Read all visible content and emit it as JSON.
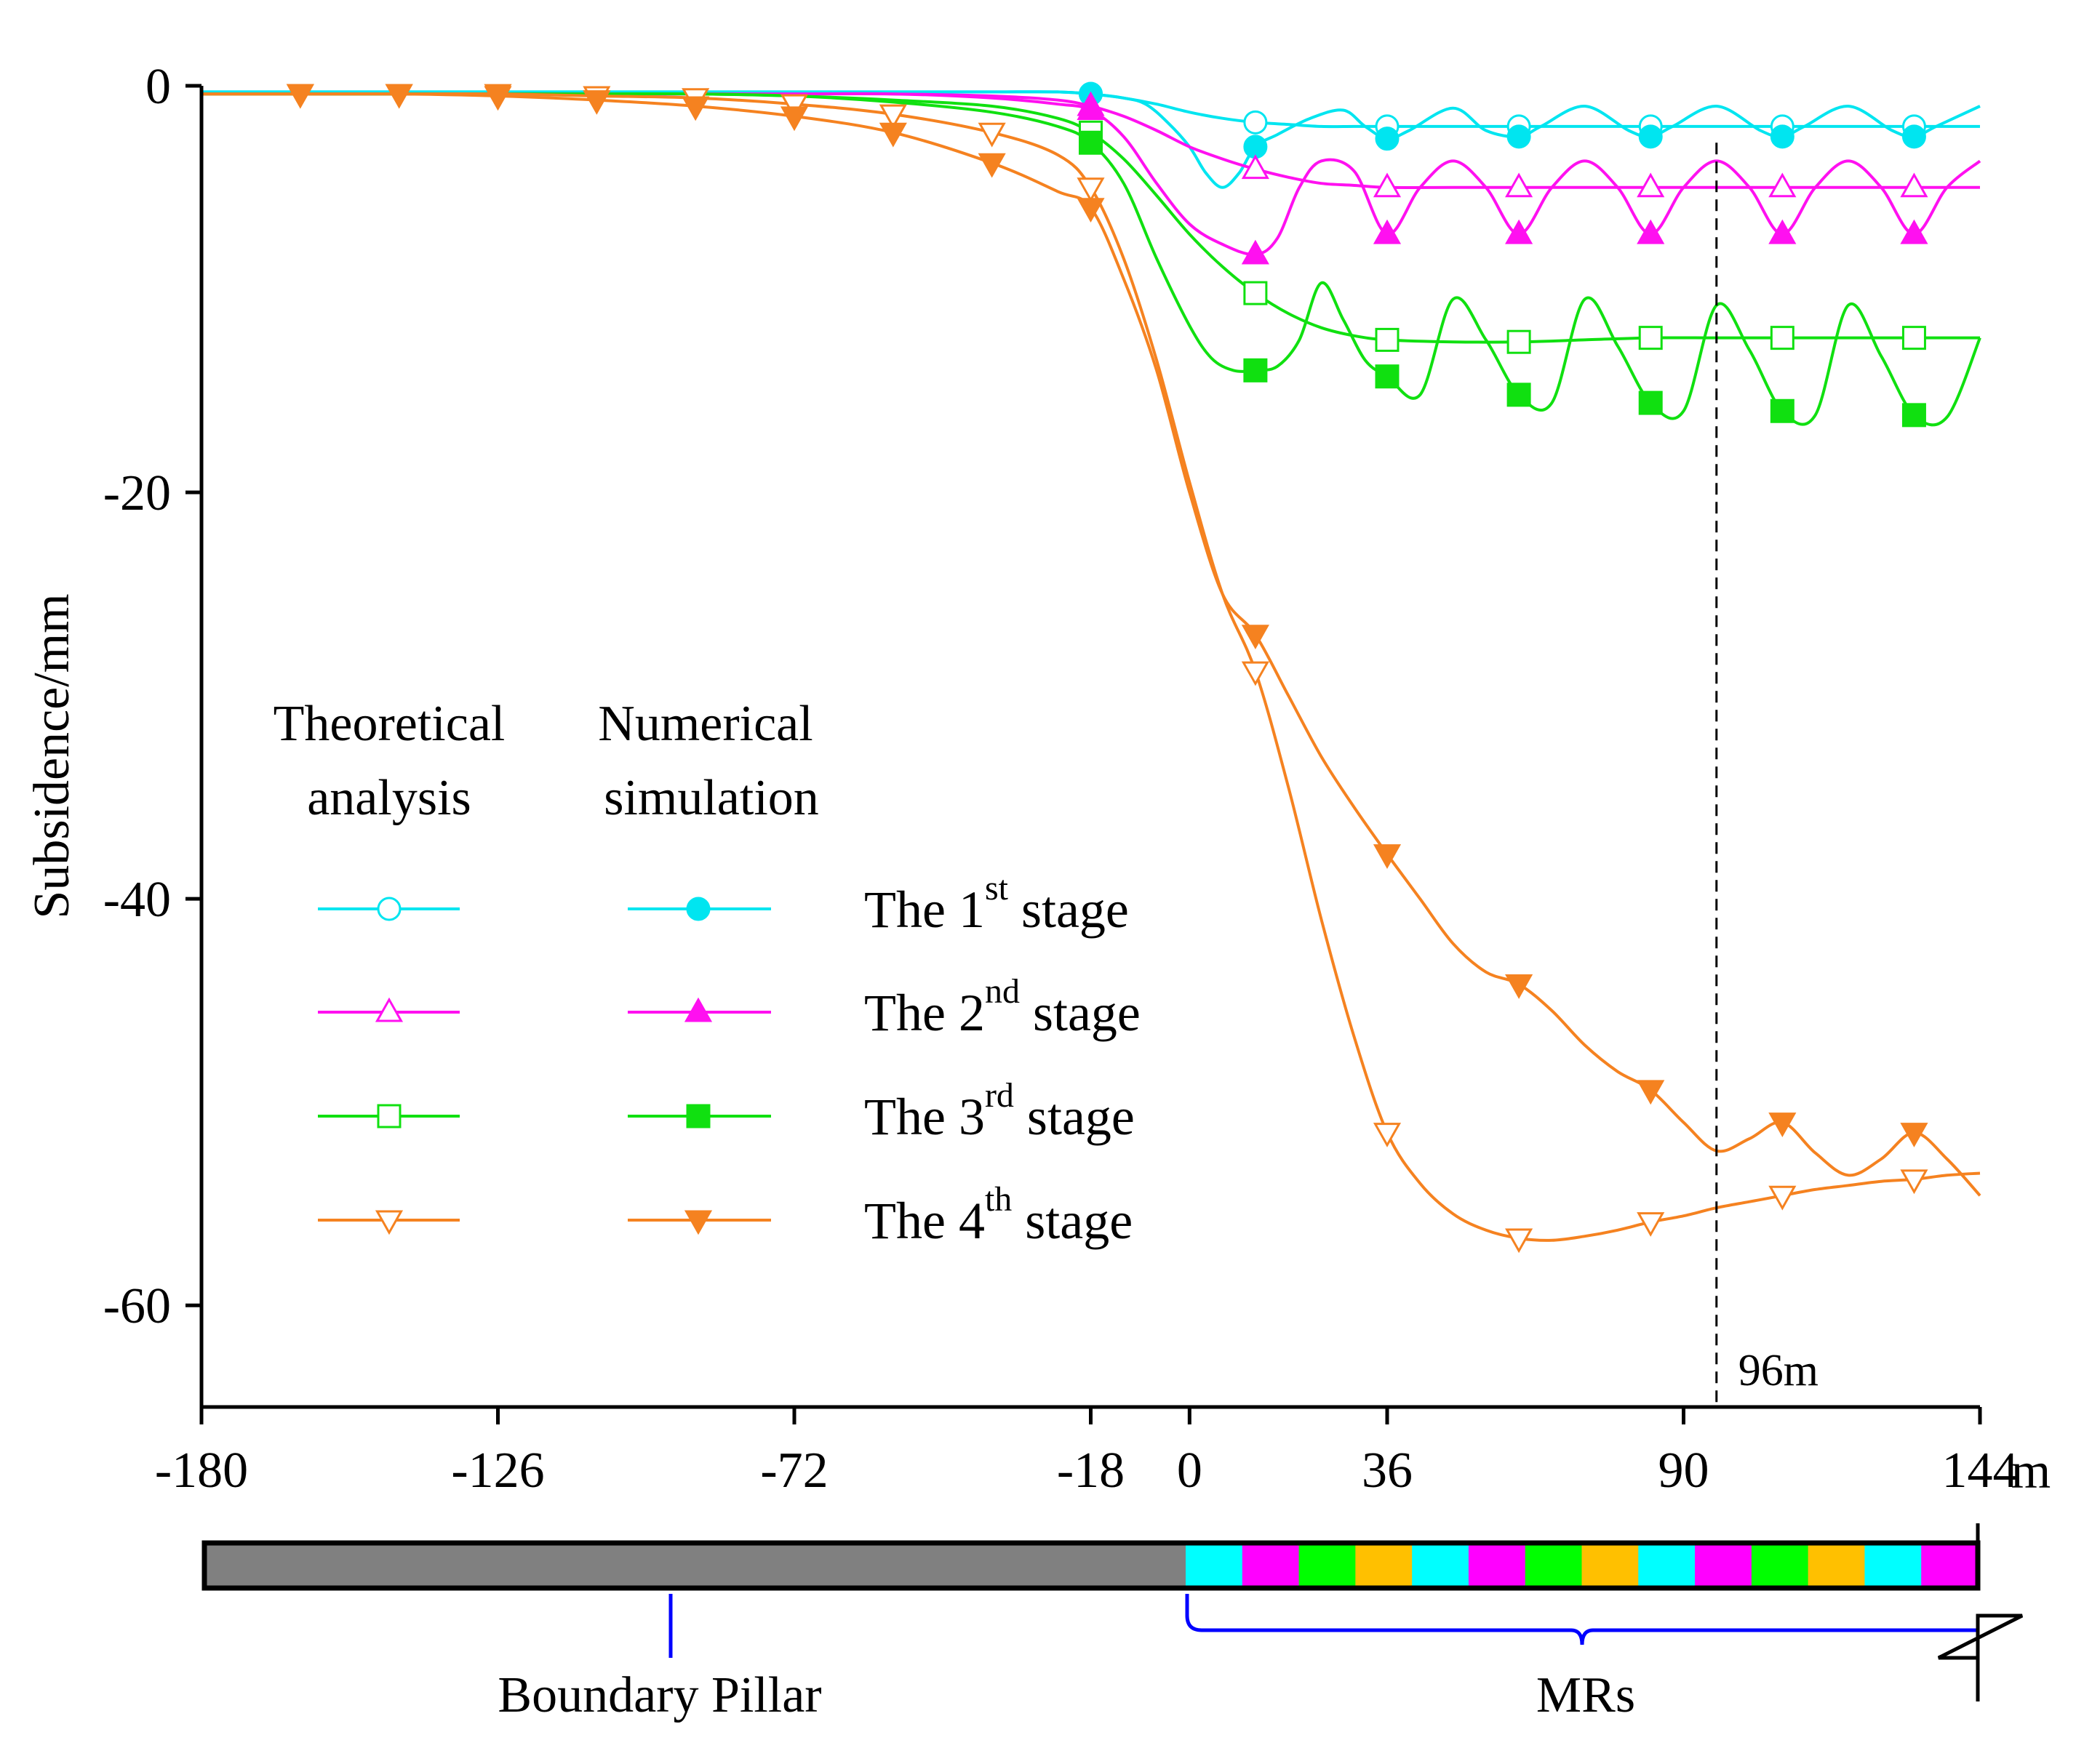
{
  "chart_data": {
    "type": "line",
    "title": "",
    "xlabel": "",
    "x_unit": "m",
    "ylabel": "Subsidence/mm",
    "xlim": [
      -180,
      144
    ],
    "ylim": [
      -65,
      0
    ],
    "x_ticks": [
      -180,
      -126,
      -72,
      -18,
      0,
      36,
      90,
      144
    ],
    "y_ticks": [
      0,
      -20,
      -40,
      -60
    ],
    "legend": {
      "col1_header": [
        "Theoretical",
        "analysis"
      ],
      "col2_header": [
        "Numerical",
        "simulation"
      ],
      "stages": [
        {
          "prefix": "The 1",
          "sup": "st",
          "suffix": " stage"
        },
        {
          "prefix": "The 2",
          "sup": "nd",
          "suffix": " stage"
        },
        {
          "prefix": "The 3",
          "sup": "rd",
          "suffix": " stage"
        },
        {
          "prefix": "The 4",
          "sup": "th",
          "suffix": " stage"
        }
      ]
    },
    "annotation": {
      "label": "96m",
      "x": 96
    },
    "series": [
      {
        "name": "Theoretical 1st stage",
        "color": "#00e5f0",
        "marker": "circle-open",
        "x": [
          -180,
          -162,
          -144,
          -126,
          -108,
          -90,
          -72,
          -54,
          -36,
          -24,
          -18,
          -12,
          -6,
          0,
          6,
          12,
          18,
          24,
          30,
          36,
          48,
          60,
          72,
          84,
          96,
          108,
          120,
          132,
          144
        ],
        "y": [
          -0.3,
          -0.3,
          -0.3,
          -0.3,
          -0.3,
          -0.3,
          -0.3,
          -0.3,
          -0.3,
          -0.3,
          -0.4,
          -0.6,
          -0.9,
          -1.3,
          -1.6,
          -1.8,
          -1.9,
          -2.0,
          -2.0,
          -2.0,
          -2.0,
          -2.0,
          -2.0,
          -2.0,
          -2.0,
          -2.0,
          -2.0,
          -2.0,
          -2.0
        ],
        "marker_x": [
          -18,
          12,
          36,
          60,
          84,
          108,
          132
        ]
      },
      {
        "name": "Numerical 1st stage",
        "color": "#00e5f0",
        "marker": "circle-filled",
        "x": [
          -180,
          -162,
          -144,
          -126,
          -108,
          -90,
          -72,
          -54,
          -36,
          -24,
          -18,
          -12,
          -8,
          -4,
          0,
          3,
          6,
          9,
          12,
          16,
          22,
          28,
          32,
          36,
          40,
          48,
          54,
          60,
          64,
          72,
          80,
          84,
          88,
          96,
          104,
          108,
          112,
          120,
          128,
          132,
          136,
          144
        ],
        "y": [
          -0.3,
          -0.3,
          -0.3,
          -0.3,
          -0.3,
          -0.3,
          -0.3,
          -0.3,
          -0.3,
          -0.3,
          -0.4,
          -0.6,
          -0.9,
          -1.8,
          -3.0,
          -4.3,
          -5.0,
          -4.3,
          -3.0,
          -2.4,
          -1.6,
          -1.2,
          -2.0,
          -2.6,
          -2.2,
          -1.1,
          -2.2,
          -2.5,
          -2.0,
          -1.0,
          -2.2,
          -2.5,
          -2.0,
          -1.0,
          -2.2,
          -2.5,
          -2.0,
          -1.0,
          -2.2,
          -2.5,
          -2.0,
          -1.0
        ],
        "marker_x": [
          -18,
          12,
          36,
          60,
          84,
          108,
          132
        ]
      },
      {
        "name": "Theoretical 2nd stage",
        "color": "#ff10f0",
        "marker": "triangle-up-open",
        "x": [
          -180,
          -162,
          -144,
          -126,
          -108,
          -90,
          -72,
          -54,
          -36,
          -24,
          -18,
          -12,
          -6,
          0,
          6,
          12,
          18,
          24,
          30,
          36,
          48,
          60,
          72,
          84,
          96,
          108,
          120,
          132,
          144
        ],
        "y": [
          -0.4,
          -0.4,
          -0.4,
          -0.4,
          -0.4,
          -0.4,
          -0.4,
          -0.4,
          -0.5,
          -0.7,
          -1.0,
          -1.5,
          -2.2,
          -3.0,
          -3.6,
          -4.1,
          -4.5,
          -4.8,
          -4.9,
          -5.0,
          -5.0,
          -5.0,
          -5.0,
          -5.0,
          -5.0,
          -5.0,
          -5.0,
          -5.0,
          -5.0
        ],
        "marker_x": [
          -18,
          12,
          36,
          60,
          84,
          108,
          132
        ]
      },
      {
        "name": "Numerical 2nd stage",
        "color": "#ff10f0",
        "marker": "triangle-up-filled",
        "x": [
          -180,
          -162,
          -144,
          -126,
          -108,
          -90,
          -72,
          -54,
          -36,
          -24,
          -18,
          -12,
          -6,
          0,
          6,
          12,
          16,
          20,
          24,
          30,
          36,
          42,
          48,
          54,
          60,
          66,
          72,
          78,
          84,
          90,
          96,
          102,
          108,
          114,
          120,
          126,
          132,
          138,
          144
        ],
        "y": [
          -0.4,
          -0.4,
          -0.4,
          -0.4,
          -0.4,
          -0.4,
          -0.4,
          -0.4,
          -0.6,
          -0.9,
          -1.2,
          -2.5,
          -4.8,
          -6.8,
          -7.8,
          -8.3,
          -7.5,
          -5.0,
          -3.7,
          -4.2,
          -7.3,
          -5.0,
          -3.7,
          -5.0,
          -7.3,
          -5.0,
          -3.7,
          -5.0,
          -7.3,
          -5.0,
          -3.7,
          -5.0,
          -7.3,
          -5.0,
          -3.7,
          -5.0,
          -7.3,
          -5.0,
          -3.7
        ],
        "marker_x": [
          -18,
          12,
          36,
          60,
          84,
          108,
          132
        ]
      },
      {
        "name": "Theoretical 3rd stage",
        "color": "#10e010",
        "marker": "square-open",
        "x": [
          -180,
          -162,
          -144,
          -126,
          -108,
          -90,
          -72,
          -54,
          -36,
          -24,
          -18,
          -12,
          -6,
          0,
          6,
          12,
          18,
          24,
          30,
          36,
          48,
          60,
          72,
          84,
          96,
          108,
          120,
          132,
          144
        ],
        "y": [
          -0.4,
          -0.4,
          -0.4,
          -0.4,
          -0.4,
          -0.4,
          -0.5,
          -0.7,
          -1.0,
          -1.6,
          -2.3,
          -3.6,
          -5.4,
          -7.3,
          -8.9,
          -10.2,
          -11.2,
          -11.9,
          -12.3,
          -12.5,
          -12.6,
          -12.6,
          -12.5,
          -12.4,
          -12.4,
          -12.4,
          -12.4,
          -12.4,
          -12.4
        ],
        "marker_x": [
          -18,
          12,
          36,
          60,
          84,
          108,
          132
        ]
      },
      {
        "name": "Numerical 3rd stage",
        "color": "#10e010",
        "marker": "square-filled",
        "x": [
          -180,
          -162,
          -144,
          -126,
          -108,
          -90,
          -72,
          -54,
          -36,
          -24,
          -18,
          -12,
          -6,
          0,
          4,
          8,
          12,
          16,
          20,
          24,
          28,
          32,
          36,
          42,
          48,
          54,
          60,
          66,
          72,
          78,
          84,
          90,
          96,
          102,
          108,
          114,
          120,
          126,
          132,
          138,
          144
        ],
        "y": [
          -0.4,
          -0.4,
          -0.4,
          -0.4,
          -0.4,
          -0.4,
          -0.5,
          -0.8,
          -1.3,
          -2.0,
          -2.8,
          -4.8,
          -8.5,
          -11.8,
          -13.4,
          -14.0,
          -14.0,
          -13.8,
          -12.5,
          -9.7,
          -11.5,
          -13.5,
          -14.3,
          -15.2,
          -10.5,
          -12.5,
          -15.2,
          -15.6,
          -10.5,
          -12.8,
          -15.6,
          -16.0,
          -10.8,
          -13.0,
          -16.0,
          -16.2,
          -10.8,
          -13.3,
          -16.2,
          -16.3,
          -12.4
        ],
        "marker_x": [
          -18,
          12,
          36,
          60,
          84,
          108,
          132
        ]
      },
      {
        "name": "Theoretical 4th stage",
        "color": "#f58220",
        "marker": "triangle-down-open",
        "x": [
          -180,
          -162,
          -144,
          -126,
          -108,
          -90,
          -72,
          -54,
          -36,
          -24,
          -18,
          -12,
          -6,
          0,
          6,
          12,
          18,
          24,
          30,
          36,
          42,
          48,
          54,
          60,
          66,
          72,
          78,
          84,
          90,
          96,
          102,
          108,
          114,
          120,
          126,
          132,
          138,
          144
        ],
        "y": [
          -0.4,
          -0.4,
          -0.4,
          -0.4,
          -0.5,
          -0.6,
          -0.9,
          -1.4,
          -2.3,
          -3.4,
          -5.0,
          -8.5,
          -13.5,
          -19.5,
          -25.0,
          -28.8,
          -34.5,
          -41.0,
          -46.8,
          -51.5,
          -54.0,
          -55.5,
          -56.3,
          -56.7,
          -56.8,
          -56.6,
          -56.3,
          -55.9,
          -55.6,
          -55.2,
          -54.9,
          -54.6,
          -54.3,
          -54.1,
          -53.9,
          -53.8,
          -53.6,
          -53.5
        ],
        "marker_x": [
          -162,
          -144,
          -126,
          -108,
          -90,
          -72,
          -54,
          -36,
          -18,
          12,
          36,
          60,
          84,
          108,
          132
        ]
      },
      {
        "name": "Numerical 4th stage",
        "color": "#f58220",
        "marker": "triangle-down-filled",
        "x": [
          -180,
          -162,
          -144,
          -126,
          -108,
          -90,
          -72,
          -54,
          -36,
          -24,
          -18,
          -12,
          -6,
          0,
          6,
          12,
          18,
          24,
          30,
          36,
          42,
          48,
          54,
          60,
          66,
          72,
          78,
          84,
          90,
          96,
          102,
          108,
          114,
          120,
          126,
          132,
          138,
          144
        ],
        "y": [
          -0.4,
          -0.4,
          -0.4,
          -0.5,
          -0.7,
          -1.0,
          -1.5,
          -2.3,
          -3.8,
          -5.2,
          -6.0,
          -9.5,
          -14.0,
          -20.0,
          -25.0,
          -27.0,
          -30.0,
          -33.0,
          -35.5,
          -37.8,
          -40.0,
          -42.2,
          -43.6,
          -44.2,
          -45.5,
          -47.2,
          -48.5,
          -49.4,
          -51.0,
          -52.4,
          -51.8,
          -51.0,
          -52.5,
          -53.6,
          -52.8,
          -51.5,
          -52.8,
          -54.6
        ],
        "marker_x": [
          -162,
          -144,
          -126,
          -108,
          -90,
          -72,
          -54,
          -36,
          -18,
          12,
          36,
          60,
          84,
          108,
          132
        ]
      }
    ]
  },
  "bar": {
    "pillar_color": "#808080",
    "mr_colors": [
      "#00ffff",
      "#ff00ff",
      "#00ff00",
      "#ffc000"
    ],
    "pillar_label": "Boundary Pillar",
    "mr_label": "MRs",
    "bracket_color": "#0000ff"
  }
}
